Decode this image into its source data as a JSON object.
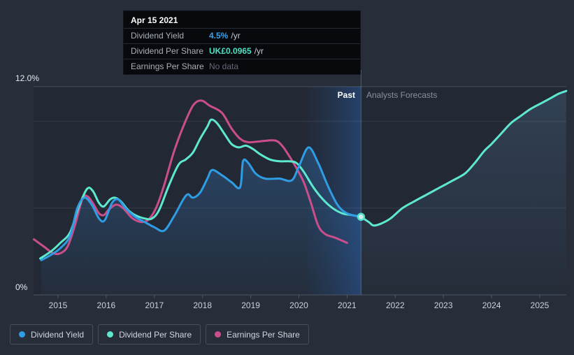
{
  "tooltip": {
    "date": "Apr 15 2021",
    "rows": [
      {
        "label": "Dividend Yield",
        "value": "4.5%",
        "suffix": "/yr",
        "color": "#3aa0e8"
      },
      {
        "label": "Dividend Per Share",
        "value": "UK£0.0965",
        "suffix": "/yr",
        "color": "#4fe0c4"
      },
      {
        "label": "Earnings Per Share",
        "value": "No data",
        "suffix": "",
        "color": "#626a76"
      }
    ]
  },
  "labels": {
    "y_max": "12.0%",
    "y_min": "0%",
    "past": "Past",
    "forecast": "Analysts Forecasts"
  },
  "legend": [
    {
      "label": "Dividend Yield",
      "color": "#2f9de4"
    },
    {
      "label": "Dividend Per Share",
      "color": "#5ee8cf"
    },
    {
      "label": "Earnings Per Share",
      "color": "#cb4e8c"
    }
  ],
  "chart_data": {
    "type": "line",
    "title": "Dividend yield history and analyst forecast",
    "x_ticks": [
      2015,
      2016,
      2017,
      2018,
      2019,
      2020,
      2021,
      2022,
      2023,
      2024,
      2025
    ],
    "xlim": [
      2014.5,
      2025.6
    ],
    "ylim": [
      0,
      12
    ],
    "y_unit": "%",
    "gridlines_pct": [
      5,
      10,
      12
    ],
    "divider_x": 2021.29,
    "past_band_start": 2020.17,
    "marker": {
      "x": 2021.29,
      "y": 4.5
    },
    "legend_position": "bottom-left",
    "series": [
      {
        "name": "Dividend Yield",
        "color": "#2f9de4",
        "fill": true,
        "region": "past",
        "points": [
          [
            2014.65,
            2.0
          ],
          [
            2014.85,
            2.3
          ],
          [
            2015.05,
            2.7
          ],
          [
            2015.25,
            3.4
          ],
          [
            2015.4,
            5.0
          ],
          [
            2015.55,
            5.6
          ],
          [
            2015.7,
            5.2
          ],
          [
            2015.85,
            4.4
          ],
          [
            2015.97,
            4.3
          ],
          [
            2016.12,
            5.3
          ],
          [
            2016.25,
            5.5
          ],
          [
            2016.4,
            5.0
          ],
          [
            2016.6,
            4.5
          ],
          [
            2016.8,
            4.2
          ],
          [
            2017.0,
            3.9
          ],
          [
            2017.2,
            3.7
          ],
          [
            2017.4,
            4.5
          ],
          [
            2017.6,
            5.5
          ],
          [
            2017.7,
            5.8
          ],
          [
            2017.8,
            5.6
          ],
          [
            2017.95,
            5.9
          ],
          [
            2018.1,
            6.7
          ],
          [
            2018.2,
            7.2
          ],
          [
            2018.4,
            6.9
          ],
          [
            2018.6,
            6.5
          ],
          [
            2018.78,
            6.2
          ],
          [
            2018.84,
            7.7
          ],
          [
            2018.95,
            7.6
          ],
          [
            2019.1,
            7.0
          ],
          [
            2019.3,
            6.7
          ],
          [
            2019.6,
            6.7
          ],
          [
            2019.85,
            6.6
          ],
          [
            2020.0,
            7.4
          ],
          [
            2020.2,
            8.5
          ],
          [
            2020.4,
            7.6
          ],
          [
            2020.6,
            6.3
          ],
          [
            2020.8,
            5.2
          ],
          [
            2021.0,
            4.7
          ],
          [
            2021.29,
            4.5
          ]
        ]
      },
      {
        "name": "Dividend Per Share",
        "color": "#5ee8cf",
        "fill": false,
        "region": "past",
        "points": [
          [
            2014.63,
            2.1
          ],
          [
            2014.85,
            2.5
          ],
          [
            2015.05,
            3.0
          ],
          [
            2015.25,
            3.6
          ],
          [
            2015.42,
            5.0
          ],
          [
            2015.6,
            6.1
          ],
          [
            2015.72,
            6.0
          ],
          [
            2015.85,
            5.3
          ],
          [
            2015.95,
            5.1
          ],
          [
            2016.08,
            5.5
          ],
          [
            2016.18,
            5.6
          ],
          [
            2016.3,
            5.4
          ],
          [
            2016.45,
            4.9
          ],
          [
            2016.6,
            4.6
          ],
          [
            2016.8,
            4.4
          ],
          [
            2016.95,
            4.4
          ],
          [
            2017.1,
            4.9
          ],
          [
            2017.3,
            6.3
          ],
          [
            2017.5,
            7.5
          ],
          [
            2017.65,
            7.8
          ],
          [
            2017.8,
            8.2
          ],
          [
            2017.95,
            9.0
          ],
          [
            2018.1,
            9.7
          ],
          [
            2018.18,
            10.1
          ],
          [
            2018.3,
            9.9
          ],
          [
            2018.45,
            9.3
          ],
          [
            2018.6,
            8.7
          ],
          [
            2018.75,
            8.5
          ],
          [
            2018.9,
            8.6
          ],
          [
            2019.05,
            8.4
          ],
          [
            2019.2,
            8.1
          ],
          [
            2019.4,
            7.8
          ],
          [
            2019.6,
            7.7
          ],
          [
            2019.8,
            7.7
          ],
          [
            2019.95,
            7.6
          ],
          [
            2020.1,
            7.1
          ],
          [
            2020.3,
            6.2
          ],
          [
            2020.5,
            5.5
          ],
          [
            2020.7,
            5.0
          ],
          [
            2020.9,
            4.7
          ],
          [
            2021.1,
            4.6
          ],
          [
            2021.29,
            4.5
          ]
        ]
      },
      {
        "name": "Dividend Per Share (forecast)",
        "color": "#5ee8cf",
        "fill": true,
        "region": "forecast",
        "points": [
          [
            2021.29,
            4.5
          ],
          [
            2021.45,
            4.2
          ],
          [
            2021.55,
            4.0
          ],
          [
            2021.7,
            4.1
          ],
          [
            2021.9,
            4.4
          ],
          [
            2022.15,
            5.0
          ],
          [
            2022.4,
            5.4
          ],
          [
            2022.6,
            5.7
          ],
          [
            2022.8,
            6.0
          ],
          [
            2023.0,
            6.3
          ],
          [
            2023.2,
            6.6
          ],
          [
            2023.45,
            7.0
          ],
          [
            2023.65,
            7.6
          ],
          [
            2023.85,
            8.3
          ],
          [
            2024.0,
            8.7
          ],
          [
            2024.2,
            9.3
          ],
          [
            2024.4,
            9.9
          ],
          [
            2024.6,
            10.3
          ],
          [
            2024.8,
            10.7
          ],
          [
            2025.0,
            11.0
          ],
          [
            2025.2,
            11.3
          ],
          [
            2025.4,
            11.6
          ],
          [
            2025.55,
            11.75
          ]
        ]
      },
      {
        "name": "Earnings Per Share",
        "color": "#cb4e8c",
        "fill": false,
        "region": "past",
        "points": [
          [
            2014.5,
            3.2
          ],
          [
            2014.7,
            2.8
          ],
          [
            2014.9,
            2.4
          ],
          [
            2015.05,
            2.4
          ],
          [
            2015.2,
            2.8
          ],
          [
            2015.35,
            4.0
          ],
          [
            2015.5,
            5.5
          ],
          [
            2015.6,
            5.7
          ],
          [
            2015.72,
            5.3
          ],
          [
            2015.85,
            4.7
          ],
          [
            2015.95,
            4.6
          ],
          [
            2016.05,
            4.9
          ],
          [
            2016.2,
            5.2
          ],
          [
            2016.35,
            5.0
          ],
          [
            2016.55,
            4.4
          ],
          [
            2016.75,
            4.2
          ],
          [
            2016.9,
            4.4
          ],
          [
            2017.05,
            5.1
          ],
          [
            2017.2,
            6.3
          ],
          [
            2017.4,
            8.2
          ],
          [
            2017.6,
            9.7
          ],
          [
            2017.8,
            10.9
          ],
          [
            2017.97,
            11.2
          ],
          [
            2018.15,
            10.9
          ],
          [
            2018.4,
            10.5
          ],
          [
            2018.6,
            9.6
          ],
          [
            2018.78,
            9.0
          ],
          [
            2018.95,
            8.8
          ],
          [
            2019.2,
            8.85
          ],
          [
            2019.5,
            8.9
          ],
          [
            2019.65,
            8.6
          ],
          [
            2019.8,
            8.0
          ],
          [
            2019.95,
            7.3
          ],
          [
            2020.1,
            6.5
          ],
          [
            2020.25,
            5.3
          ],
          [
            2020.4,
            4.0
          ],
          [
            2020.55,
            3.5
          ],
          [
            2020.75,
            3.3
          ],
          [
            2021.0,
            3.0
          ]
        ]
      }
    ]
  }
}
